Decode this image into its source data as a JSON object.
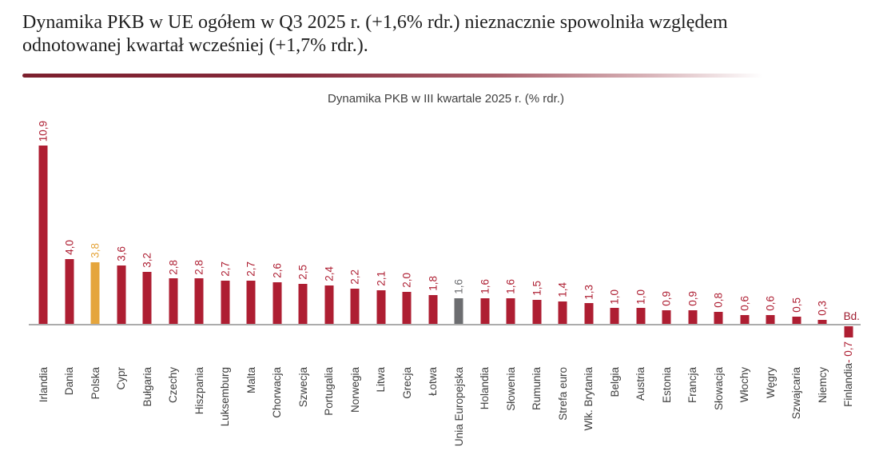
{
  "header": {
    "line1": "Dynamika PKB w UE ogółem w Q3 2025 r. (+1,6% rdr.) nieznacznie spowolniła względem",
    "line2": "odnotowanej kwartał wcześniej (+1,7% rdr.)."
  },
  "chart_data": {
    "type": "bar",
    "title": "Dynamika PKB w III kwartale 2025 r. (% rdr.)",
    "value_unit": "% rdr.",
    "ylim": [
      -1,
      11.5
    ],
    "grid": false,
    "legend": "none",
    "category_labels_rotated": true,
    "bars": [
      {
        "category": "Irlandia",
        "value": 10.9,
        "label": "10,9",
        "color": "red"
      },
      {
        "category": "Dania",
        "value": 4.0,
        "label": "4,0",
        "color": "red"
      },
      {
        "category": "Polska",
        "value": 3.8,
        "label": "3,8",
        "color": "gold"
      },
      {
        "category": "Cypr",
        "value": 3.6,
        "label": "3,6",
        "color": "red"
      },
      {
        "category": "Bułgaria",
        "value": 3.2,
        "label": "3,2",
        "color": "red"
      },
      {
        "category": "Czechy",
        "value": 2.8,
        "label": "2,8",
        "color": "red"
      },
      {
        "category": "Hiszpania",
        "value": 2.8,
        "label": "2,8",
        "color": "red"
      },
      {
        "category": "Luksemburg",
        "value": 2.7,
        "label": "2,7",
        "color": "red"
      },
      {
        "category": "Malta",
        "value": 2.7,
        "label": "2,7",
        "color": "red"
      },
      {
        "category": "Chorwacja",
        "value": 2.6,
        "label": "2,6",
        "color": "red"
      },
      {
        "category": "Szwecja",
        "value": 2.5,
        "label": "2,5",
        "color": "red"
      },
      {
        "category": "Portugalia",
        "value": 2.4,
        "label": "2,4",
        "color": "red"
      },
      {
        "category": "Norwegia",
        "value": 2.2,
        "label": "2,2",
        "color": "red"
      },
      {
        "category": "Litwa",
        "value": 2.1,
        "label": "2,1",
        "color": "red"
      },
      {
        "category": "Grecja",
        "value": 2.0,
        "label": "2,0",
        "color": "red"
      },
      {
        "category": "Łotwa",
        "value": 1.8,
        "label": "1,8",
        "color": "red"
      },
      {
        "category": "Unia Europejska",
        "value": 1.6,
        "label": "1,6",
        "color": "gray"
      },
      {
        "category": "Holandia",
        "value": 1.6,
        "label": "1,6",
        "color": "red"
      },
      {
        "category": "Słowenia",
        "value": 1.6,
        "label": "1,6",
        "color": "red"
      },
      {
        "category": "Rumunia",
        "value": 1.5,
        "label": "1,5",
        "color": "red"
      },
      {
        "category": "Strefa euro",
        "value": 1.4,
        "label": "1,4",
        "color": "red"
      },
      {
        "category": "Wlk. Brytania",
        "value": 1.3,
        "label": "1,3",
        "color": "red"
      },
      {
        "category": "Belgia",
        "value": 1.0,
        "label": "1,0",
        "color": "red"
      },
      {
        "category": "Austria",
        "value": 1.0,
        "label": "1,0",
        "color": "red"
      },
      {
        "category": "Estonia",
        "value": 0.9,
        "label": "0,9",
        "color": "red"
      },
      {
        "category": "Francja",
        "value": 0.9,
        "label": "0,9",
        "color": "red"
      },
      {
        "category": "Słowacja",
        "value": 0.8,
        "label": "0,8",
        "color": "red"
      },
      {
        "category": "Włochy",
        "value": 0.6,
        "label": "0,6",
        "color": "red"
      },
      {
        "category": "Węgry",
        "value": 0.6,
        "label": "0,6",
        "color": "red"
      },
      {
        "category": "Szwajcaria",
        "value": 0.5,
        "label": "0,5",
        "color": "red"
      },
      {
        "category": "Niemcy",
        "value": 0.3,
        "label": "0,3",
        "color": "red"
      },
      {
        "category": "Finlandia",
        "value": -0.7,
        "label": "- 0,7",
        "color": "red",
        "annotation": "Bd.",
        "label_position": "below-bar"
      }
    ]
  },
  "colors": {
    "red": "#ae1e32",
    "gold": "#e5a53c",
    "gray": "#6c6d70",
    "axis": "#acacac",
    "category_label": "#3e3e3e",
    "annotation": "#9e1b2e",
    "divider_start": "#7c1f2d"
  }
}
